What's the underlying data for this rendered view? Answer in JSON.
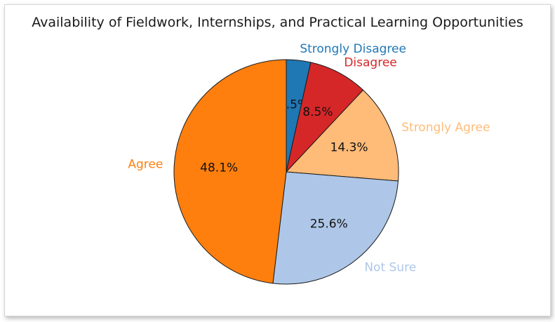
{
  "chart_data": {
    "type": "pie",
    "title": "Availability of Fieldwork, Internships, and Practical Learning Opportunities",
    "start_angle_deg": 90,
    "direction": "clockwise",
    "slices": [
      {
        "label": "Strongly Disagree",
        "value": 3.5,
        "pct_label": "3.5%",
        "color": "#1f77b4"
      },
      {
        "label": "Disagree",
        "value": 8.5,
        "pct_label": "8.5%",
        "color": "#d62728"
      },
      {
        "label": "Strongly Agree",
        "value": 14.3,
        "pct_label": "14.3%",
        "color": "#ffbb78"
      },
      {
        "label": "Not Sure",
        "value": 25.6,
        "pct_label": "25.6%",
        "color": "#aec7e8"
      },
      {
        "label": "Agree",
        "value": 48.1,
        "pct_label": "48.1%",
        "color": "#ff7f0e"
      }
    ]
  }
}
